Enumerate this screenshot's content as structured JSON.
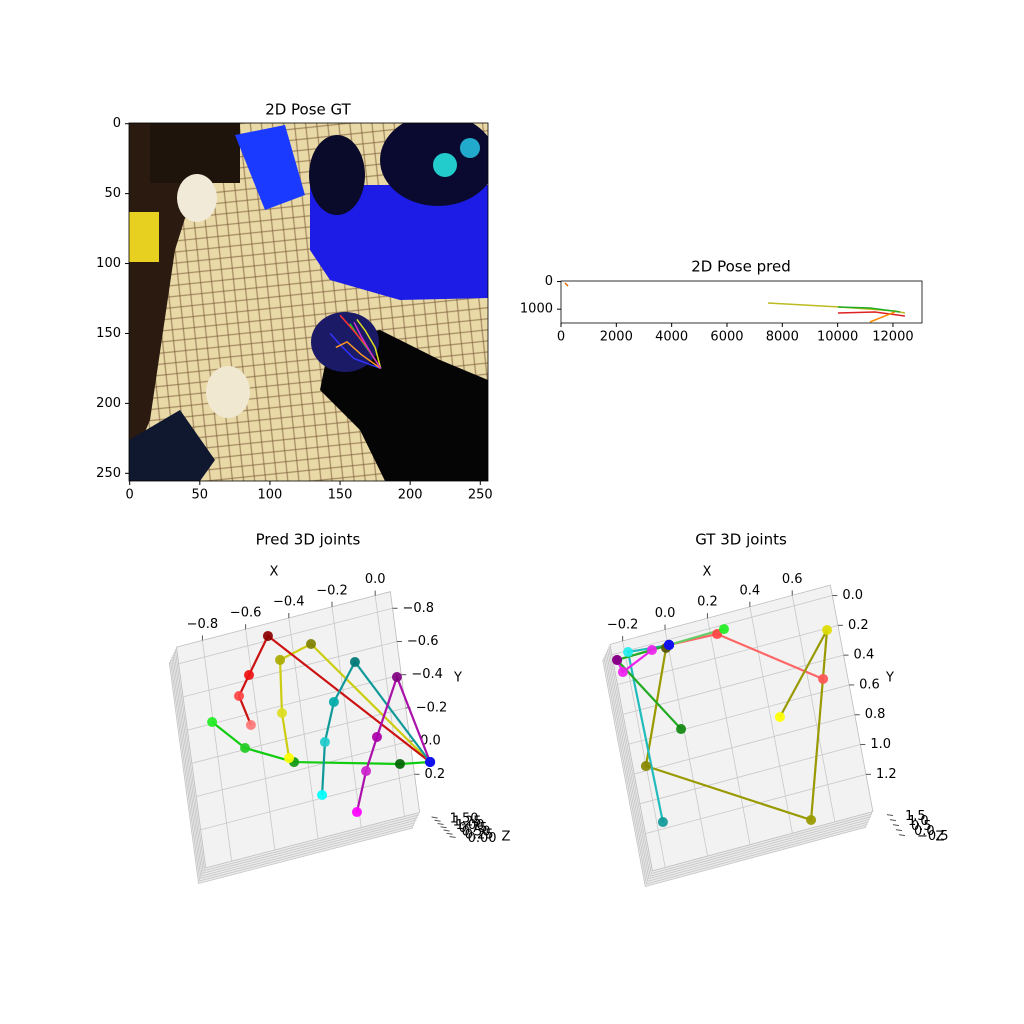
{
  "chart_data": [
    {
      "type": "image",
      "title": "2D Pose GT",
      "xlim": [
        -0.5,
        255.5
      ],
      "ylim": [
        255.5,
        -0.5
      ],
      "xticks": [
        0,
        50,
        100,
        150,
        200,
        250
      ],
      "yticks": [
        0,
        50,
        100,
        150,
        200,
        250
      ],
      "series": [
        {
          "color": "#22cc22",
          "x": [
            179,
            171,
            163,
            157
          ],
          "y": [
            175,
            163,
            152,
            143
          ]
        },
        {
          "color": "#ff3333",
          "x": [
            179,
            168,
            158,
            150
          ],
          "y": [
            175,
            158,
            146,
            137
          ]
        },
        {
          "color": "#dddd22",
          "x": [
            179,
            175,
            168,
            162
          ],
          "y": [
            175,
            160,
            148,
            140
          ]
        },
        {
          "color": "#3333ff",
          "x": [
            179,
            160,
            150,
            143
          ],
          "y": [
            175,
            168,
            158,
            150
          ]
        },
        {
          "color": "#ff9922",
          "x": [
            179,
            165,
            155,
            147
          ],
          "y": [
            175,
            165,
            156,
            160
          ]
        },
        {
          "color": "#cc33cc",
          "x": [
            179,
            172,
            165,
            160
          ],
          "y": [
            175,
            164,
            152,
            142
          ]
        }
      ]
    },
    {
      "type": "line",
      "title": "2D Pose pred",
      "xlim": [
        0,
        13050
      ],
      "ylim": [
        1500,
        -20
      ],
      "xticks": [
        0,
        2000,
        4000,
        6000,
        8000,
        10000,
        12000
      ],
      "yticks": [
        0,
        1000
      ],
      "series": [
        {
          "color": "#bbbb22",
          "x": [
            7481,
            10083,
            12071,
            12432
          ],
          "y": [
            776,
            921,
            1066,
            1138
          ]
        },
        {
          "color": "#22aa22",
          "x": [
            10011,
            11167,
            12251
          ],
          "y": [
            921,
            957,
            1102
          ]
        },
        {
          "color": "#dd2222",
          "x": [
            10011,
            11348,
            12432
          ],
          "y": [
            1138,
            1102,
            1247
          ]
        },
        {
          "color": "#ff8800",
          "x": [
            11167,
            12071
          ],
          "y": [
            1464,
            1102
          ]
        },
        {
          "color": "#dd6600",
          "x": [
            145,
            253
          ],
          "y": [
            52,
            161
          ]
        }
      ]
    },
    {
      "type": "pose3d",
      "title": "Pred 3D joints",
      "xlabel": "X",
      "ylabel": "Y",
      "zlabel": "Z",
      "xlim": [
        -0.92,
        0.07
      ],
      "ylim": [
        -0.9,
        0.43
      ],
      "zlim": [
        0,
        1.5
      ],
      "xticks": [
        {
          "value": -0.8,
          "label": "−0.8"
        },
        {
          "value": -0.6,
          "label": "−0.6"
        },
        {
          "value": -0.4,
          "label": "−0.4"
        },
        {
          "value": -0.2,
          "label": "−0.2"
        },
        {
          "value": 0,
          "label": "0.0"
        }
      ],
      "yticks": [
        {
          "value": -0.8,
          "label": "−0.8"
        },
        {
          "value": -0.6,
          "label": "−0.6"
        },
        {
          "value": -0.4,
          "label": "−0.4"
        },
        {
          "value": -0.2,
          "label": "−0.2"
        },
        {
          "value": 0,
          "label": "0.0"
        },
        {
          "value": 0.2,
          "label": "0.2"
        }
      ],
      "zticks": [
        {
          "value": 0,
          "label": "0.00"
        },
        {
          "value": 0.25,
          "label": "0.25"
        },
        {
          "value": 0.5,
          "label": "0.50"
        },
        {
          "value": 0.75,
          "label": "0.75"
        },
        {
          "value": 1,
          "label": "1.00"
        },
        {
          "value": 1.25,
          "label": "1.25"
        },
        {
          "value": 1.5,
          "label": "1.50"
        }
      ],
      "series": [
        {
          "color": "#11cc11",
          "x": [
            0.147,
            0.011,
            -0.462,
            -0.673,
            -0.805
          ],
          "y": [
            0.152,
            0.118,
            -0.053,
            -0.209,
            -0.41
          ],
          "point_colors": [
            "#1111ee",
            "#006400",
            "#119911",
            "#22cc22",
            "#22ee22"
          ]
        },
        {
          "color": "#cccc11",
          "x": [
            0.147,
            -0.316,
            -0.464,
            -0.487,
            -0.482
          ],
          "y": [
            0.152,
            -0.715,
            -0.669,
            -0.357,
            -0.084
          ],
          "point_colors": [
            "#1111ee",
            "#808000",
            "#aaaa00",
            "#dddd22",
            "#ffff00"
          ]
        },
        {
          "color": "#cc1111",
          "x": [
            0.147,
            -0.504,
            -0.612,
            -0.669,
            -0.633
          ],
          "y": [
            0.152,
            -0.827,
            -0.628,
            -0.521,
            -0.334
          ],
          "point_colors": [
            "#1111ee",
            "#8b0000",
            "#ee1111",
            "#ff4444",
            "#ff7777"
          ]
        },
        {
          "color": "#119999",
          "x": [
            0.147,
            -0.13,
            -0.248,
            -0.312,
            -0.356
          ],
          "y": [
            0.152,
            -0.544,
            -0.343,
            -0.123,
            0.181
          ],
          "point_colors": [
            "#1111ee",
            "#007777",
            "#00aaaa",
            "#22cccc",
            "#00ffff"
          ]
        },
        {
          "color": "#aa11aa",
          "x": [
            0.147,
            0.049,
            -0.076,
            -0.145,
            -0.21
          ],
          "y": [
            0.152,
            -0.393,
            -0.074,
            0.108,
            0.333
          ],
          "point_colors": [
            "#1111ee",
            "#800080",
            "#aa00aa",
            "#cc22cc",
            "#ff00ff"
          ]
        }
      ]
    },
    {
      "type": "pose3d",
      "title": "GT 3D joints",
      "xlabel": "X",
      "ylabel": "Y",
      "zlabel": "Z",
      "xlim": [
        -0.26,
        0.78
      ],
      "ylim": [
        -0.07,
        1.45
      ],
      "zlim": [
        -0.5,
        1.5
      ],
      "xticks": [
        {
          "value": -0.2,
          "label": "−0.2"
        },
        {
          "value": 0,
          "label": "0.0"
        },
        {
          "value": 0.2,
          "label": "0.2"
        },
        {
          "value": 0.4,
          "label": "0.4"
        },
        {
          "value": 0.6,
          "label": "0.6"
        }
      ],
      "yticks": [
        {
          "value": 0,
          "label": "0.0"
        },
        {
          "value": 0.2,
          "label": "0.2"
        },
        {
          "value": 0.4,
          "label": "0.4"
        },
        {
          "value": 0.6,
          "label": "0.6"
        },
        {
          "value": 0.8,
          "label": "0.8"
        },
        {
          "value": 1,
          "label": "1.0"
        },
        {
          "value": 1.2,
          "label": "1.2"
        }
      ],
      "zticks": [
        {
          "value": -0.5,
          "label": "−0.5"
        },
        {
          "value": 0,
          "label": "0.0"
        },
        {
          "value": 0.5,
          "label": "0.5"
        },
        {
          "value": 1,
          "label": "1.0"
        },
        {
          "value": 1.5,
          "label": "1.5"
        }
      ],
      "series": [
        {
          "color": "#ff6666",
          "x": [
            0.005,
            0.23,
            0.668
          ],
          "y": [
            0.035,
            0.048,
            0.517
          ],
          "point_colors": [
            "#1111ee",
            "#ff4444",
            "#ff5555"
          ]
        },
        {
          "color": "#66cc66",
          "x": [
            0.005,
            0.265
          ],
          "y": [
            0.035,
            0.028
          ],
          "point_colors": [
            "#1111ee",
            "#22ee22"
          ]
        },
        {
          "color": "#999900",
          "x": [
            0.005,
            -0.011,
            -0.201,
            0.495,
            0.727,
            0.442
          ],
          "y": [
            0.035,
            0.049,
            0.769,
            1.397,
            0.211,
            0.686
          ],
          "point_colors": [
            "#1111ee",
            "#555500",
            "#888800",
            "#999900",
            "#dddd00",
            "#ffff00"
          ]
        },
        {
          "color": "#22bbbb",
          "x": [
            0.005,
            -0.185,
            -0.172
          ],
          "y": [
            0.035,
            0.01,
            1.156
          ],
          "point_colors": [
            "#1111ee",
            "#22eeee",
            "#119999"
          ]
        },
        {
          "color": "#ee22ee",
          "x": [
            0.005,
            -0.076,
            -0.225,
            -0.241
          ],
          "y": [
            0.035,
            0.038,
            0.129,
            0.042
          ],
          "point_colors": [
            "#1111ee",
            "#ee22ee",
            "#ee22ee",
            "#880088"
          ]
        },
        {
          "color": "#22aa22",
          "x": [
            0.005,
            -0.241,
            -0.012
          ],
          "y": [
            0.035,
            0.042,
            0.593
          ],
          "point_colors": [
            "#1111ee",
            "#880088",
            "#118811"
          ]
        }
      ]
    }
  ]
}
